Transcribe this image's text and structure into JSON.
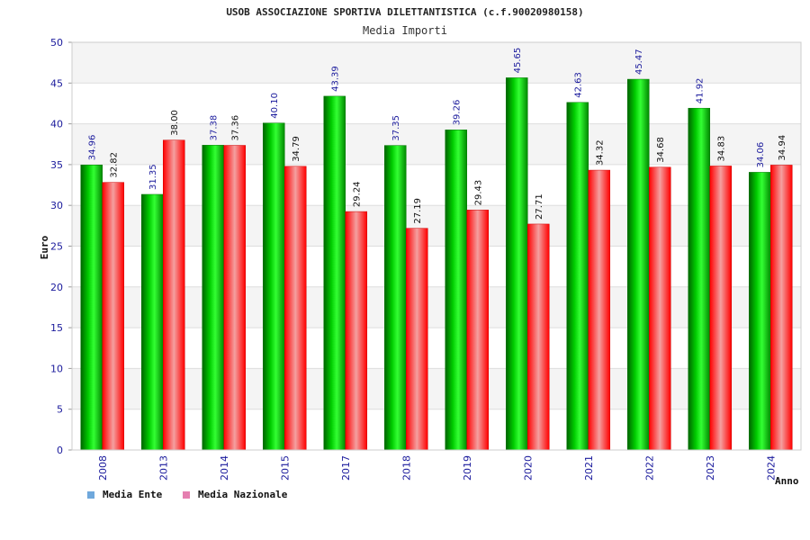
{
  "chart_data": {
    "type": "bar",
    "title": "USOB ASSOCIAZIONE SPORTIVA DILETTANTISTICA (c.f.90020980158)",
    "subtitle": "Media Importi",
    "xlabel": "Anno",
    "ylabel": "Euro",
    "ylim": [
      0,
      50
    ],
    "yticks": [
      0,
      5,
      10,
      15,
      20,
      25,
      30,
      35,
      40,
      45,
      50
    ],
    "categories": [
      "2008",
      "2013",
      "2014",
      "2015",
      "2017",
      "2018",
      "2019",
      "2020",
      "2021",
      "2022",
      "2023",
      "2024"
    ],
    "series": [
      {
        "name": "Media Ente",
        "color": "#00c800",
        "legend_color": "#6fa8dc",
        "values": [
          34.96,
          31.35,
          37.38,
          40.1,
          43.39,
          37.35,
          39.26,
          45.65,
          42.63,
          45.47,
          41.92,
          34.06
        ],
        "labels": [
          "34.96",
          "31.35",
          "37.38",
          "40.10",
          "43.39",
          "37.35",
          "39.26",
          "45.65",
          "42.63",
          "45.47",
          "41.92",
          "34.06"
        ]
      },
      {
        "name": "Media Nazionale",
        "color": "#ff1a1a",
        "legend_color": "#e57fb0",
        "values": [
          32.82,
          38.0,
          37.36,
          34.79,
          29.24,
          27.19,
          29.43,
          27.71,
          34.32,
          34.68,
          34.83,
          34.94
        ],
        "labels": [
          "32.82",
          "38.00",
          "37.36",
          "34.79",
          "29.24",
          "27.19",
          "29.43",
          "27.71",
          "34.32",
          "34.68",
          "34.83",
          "34.94"
        ]
      }
    ],
    "grid": true,
    "legend_position": "bottom-left"
  }
}
